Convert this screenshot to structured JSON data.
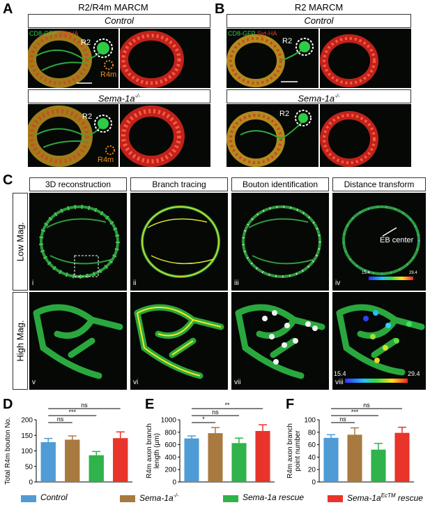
{
  "panelA": {
    "letter": "A",
    "title": "R2/R4m MARCM",
    "control_label": "Control",
    "mutant_label": "Sema-1a",
    "mutant_sup": "-/-",
    "stain_green": "CD8-GFP",
    "stain_red": "Syt-HA",
    "r2": "R2",
    "r4m": "R4m"
  },
  "panelB": {
    "letter": "B",
    "title": "R2 MARCM",
    "control_label": "Control",
    "mutant_label": "Sema-1a",
    "mutant_sup": "-/-",
    "stain_green": "CD8-GFP",
    "stain_red": "Syt-HA",
    "r2": "R2"
  },
  "panelC": {
    "letter": "C",
    "columns": [
      "3D reconstruction",
      "Branch tracing",
      "Bouton identification",
      "Distance transform"
    ],
    "rows": [
      "Low Mag.",
      "High Mag."
    ],
    "low_ids": [
      "i",
      "ii",
      "iii",
      "iv"
    ],
    "high_ids": [
      "v",
      "vi",
      "vii",
      "viii"
    ],
    "eb_center": "EB center",
    "scale_low_min": "15.4",
    "scale_low_max": "29.4",
    "scale_high_min": "15.4",
    "scale_high_max": "29.4"
  },
  "legend": {
    "items": [
      {
        "label": "Control",
        "color": "#4f9bd6"
      },
      {
        "label": "Sema-1a",
        "sup": "-/-",
        "color": "#a87a40"
      },
      {
        "label": "Sema-1a rescue",
        "color": "#2fb34a"
      },
      {
        "label": "Sema-1a",
        "sup": "EcTM",
        "suffix": " rescue",
        "color": "#e8342a"
      }
    ]
  },
  "chart_data": [
    {
      "panel": "D",
      "type": "bar",
      "ylabel": "Total R4m bouton No.",
      "ylim": [
        0,
        200
      ],
      "yticks": [
        0,
        50,
        100,
        150,
        200
      ],
      "categories": [
        "Control",
        "Sema-1a-/-",
        "Sema-1a rescue",
        "Sema-1aEcTM rescue"
      ],
      "values": [
        128,
        136,
        86,
        141
      ],
      "errors": [
        12,
        12,
        12,
        20
      ],
      "significance": [
        {
          "from": 0,
          "to": 1,
          "label": "ns"
        },
        {
          "from": 0,
          "to": 2,
          "label": "***"
        },
        {
          "from": 0,
          "to": 3,
          "label": "ns"
        }
      ]
    },
    {
      "panel": "E",
      "type": "bar",
      "ylabel": "R4m axon branch length (µm)",
      "ylim": [
        0,
        1000
      ],
      "yticks": [
        0,
        200,
        400,
        600,
        800,
        1000
      ],
      "categories": [
        "Control",
        "Sema-1a-/-",
        "Sema-1a rescue",
        "Sema-1aEcTM rescue"
      ],
      "values": [
        700,
        785,
        625,
        820
      ],
      "errors": [
        40,
        90,
        80,
        100
      ],
      "significance": [
        {
          "from": 0,
          "to": 1,
          "label": "*"
        },
        {
          "from": 0,
          "to": 2,
          "label": "ns"
        },
        {
          "from": 0,
          "to": 3,
          "label": "**"
        }
      ]
    },
    {
      "panel": "F",
      "type": "bar",
      "ylabel": "R4m axon branch point number",
      "ylim": [
        0,
        100
      ],
      "yticks": [
        0,
        20,
        40,
        60,
        80,
        100
      ],
      "categories": [
        "Control",
        "Sema-1a-/-",
        "Sema-1a rescue",
        "Sema-1aEcTM rescue"
      ],
      "values": [
        71,
        76,
        52,
        79
      ],
      "errors": [
        5,
        11,
        10,
        9
      ],
      "significance": [
        {
          "from": 0,
          "to": 1,
          "label": "ns"
        },
        {
          "from": 0,
          "to": 2,
          "label": "***"
        },
        {
          "from": 0,
          "to": 3,
          "label": "ns"
        }
      ]
    }
  ]
}
